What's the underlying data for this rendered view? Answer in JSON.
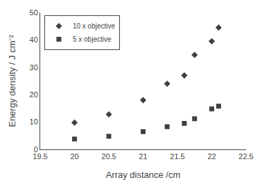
{
  "chart_data": {
    "type": "scatter",
    "xlabel": "Array distance /cm",
    "ylabel": "Energy density / J cm⁻²",
    "x": [
      20.0,
      20.5,
      21.0,
      21.35,
      21.6,
      21.75,
      22.0,
      22.1
    ],
    "series": [
      {
        "name": "10 x objective",
        "color": "#404040",
        "marker": "diamond",
        "values": [
          9.8,
          12.8,
          18.0,
          24.0,
          27.0,
          34.5,
          39.5,
          44.5
        ]
      },
      {
        "name": "5 x objective",
        "color": "#404040",
        "marker": "square",
        "values": [
          3.8,
          4.8,
          6.5,
          8.3,
          9.5,
          11.2,
          14.8,
          15.8
        ]
      }
    ],
    "xlim": [
      19.5,
      22.5
    ],
    "ylim": [
      0,
      50
    ],
    "xticks": [
      19.5,
      20,
      20.5,
      21,
      21.5,
      22,
      22.5
    ],
    "yticks": [
      0,
      10,
      20,
      30,
      40,
      50
    ],
    "grid": false,
    "legend": "upper left"
  }
}
